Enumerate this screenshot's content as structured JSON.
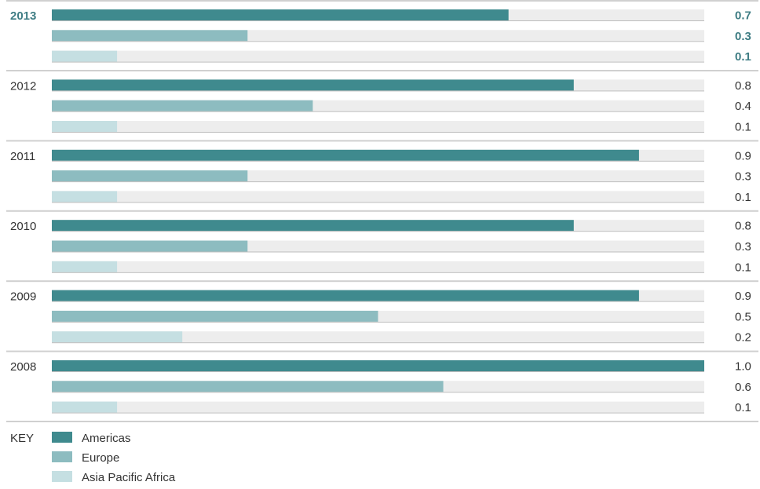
{
  "chart_data": {
    "type": "bar",
    "orientation": "horizontal",
    "categories": [
      "2013",
      "2012",
      "2011",
      "2010",
      "2009",
      "2008"
    ],
    "series": [
      {
        "name": "Americas",
        "values": [
          0.7,
          0.8,
          0.9,
          0.8,
          0.9,
          1.0
        ],
        "color": "#3f8a8e"
      },
      {
        "name": "Europe",
        "values": [
          0.3,
          0.4,
          0.3,
          0.3,
          0.5,
          0.6
        ],
        "color": "#8dbcc0"
      },
      {
        "name": "Asia Pacific Africa",
        "values": [
          0.1,
          0.1,
          0.1,
          0.1,
          0.2,
          0.1
        ],
        "color": "#c5dfe2"
      }
    ],
    "value_labels": [
      [
        "0.7",
        "0.3",
        "0.1"
      ],
      [
        "0.8",
        "0.4",
        "0.1"
      ],
      [
        "0.9",
        "0.3",
        "0.1"
      ],
      [
        "0.8",
        "0.3",
        "0.1"
      ],
      [
        "0.9",
        "0.5",
        "0.2"
      ],
      [
        "1.0",
        "0.6",
        "0.1"
      ]
    ],
    "xlim": [
      0,
      1.0
    ],
    "highlight_category": "2013",
    "highlight_color": "#3f7d84",
    "track_color": "#ededed",
    "separator_color": "#d0d0d0",
    "legend": {
      "title": "KEY",
      "placement": "bottom-left"
    },
    "grid": false
  }
}
